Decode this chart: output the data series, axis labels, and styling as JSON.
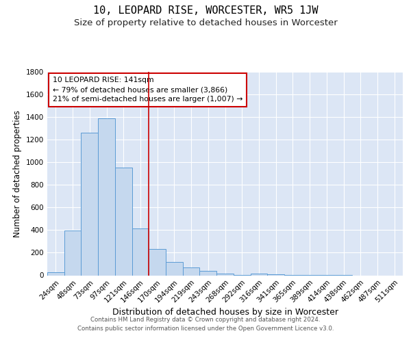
{
  "title": "10, LEOPARD RISE, WORCESTER, WR5 1JW",
  "subtitle": "Size of property relative to detached houses in Worcester",
  "xlabel": "Distribution of detached houses by size in Worcester",
  "ylabel": "Number of detached properties",
  "categories": [
    "24sqm",
    "48sqm",
    "73sqm",
    "97sqm",
    "121sqm",
    "146sqm",
    "170sqm",
    "194sqm",
    "219sqm",
    "243sqm",
    "268sqm",
    "292sqm",
    "316sqm",
    "341sqm",
    "365sqm",
    "389sqm",
    "414sqm",
    "438sqm",
    "462sqm",
    "487sqm",
    "511sqm"
  ],
  "values": [
    30,
    395,
    1260,
    1390,
    950,
    415,
    230,
    115,
    70,
    38,
    18,
    5,
    18,
    8,
    5,
    2,
    2,
    2,
    0,
    0,
    0
  ],
  "bar_color": "#c5d8ee",
  "bar_edge_color": "#5b9bd5",
  "background_color": "#dce6f5",
  "vline_x": 5.5,
  "vline_color": "#cc0000",
  "annotation_text": "10 LEOPARD RISE: 141sqm\n← 79% of detached houses are smaller (3,866)\n21% of semi-detached houses are larger (1,007) →",
  "ylim": [
    0,
    1800
  ],
  "yticks": [
    0,
    200,
    400,
    600,
    800,
    1000,
    1200,
    1400,
    1600,
    1800
  ],
  "footer_line1": "Contains HM Land Registry data © Crown copyright and database right 2024.",
  "footer_line2": "Contains public sector information licensed under the Open Government Licence v3.0.",
  "title_fontsize": 11,
  "subtitle_fontsize": 9.5,
  "xlabel_fontsize": 9,
  "ylabel_fontsize": 8.5,
  "grid_color": "#ffffff",
  "tick_label_fontsize": 7.5
}
